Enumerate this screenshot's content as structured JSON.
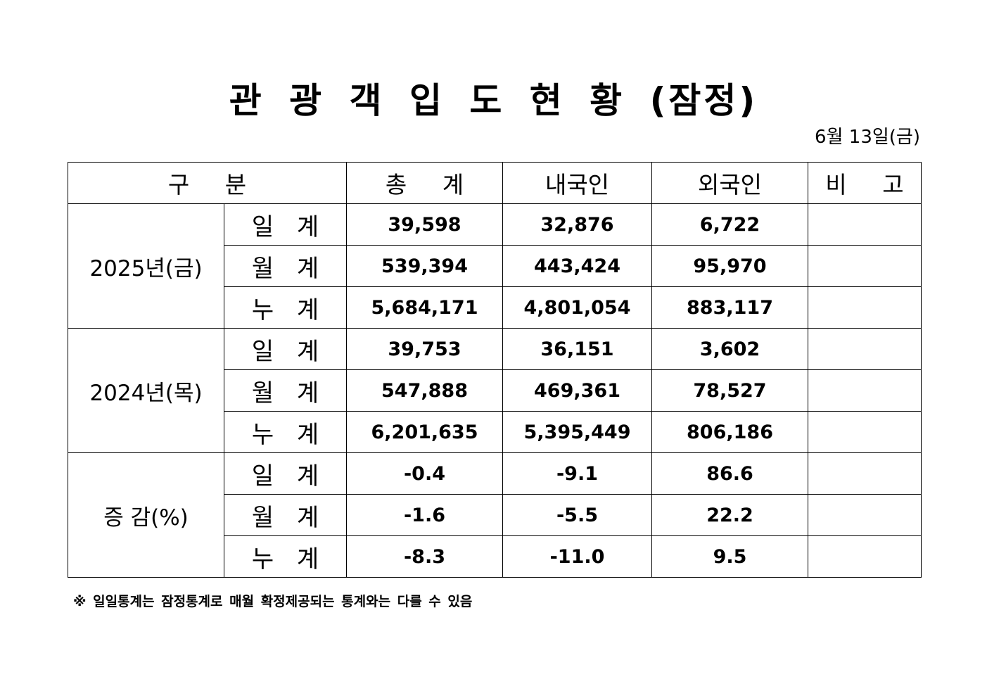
{
  "title": "관 광 객 입 도 현 황 (잠정)",
  "date": "6월  13일(금)",
  "headers": {
    "category": "구  분",
    "total": "총  계",
    "domestic": "내국인",
    "foreign": "외국인",
    "note": "비  고"
  },
  "groups": [
    {
      "label": "2025년(금)",
      "rows": [
        {
          "sub": "일 계",
          "total": "39,598",
          "domestic": "32,876",
          "foreign": "6,722",
          "note": ""
        },
        {
          "sub": "월 계",
          "total": "539,394",
          "domestic": "443,424",
          "foreign": "95,970",
          "note": ""
        },
        {
          "sub": "누 계",
          "total": "5,684,171",
          "domestic": "4,801,054",
          "foreign": "883,117",
          "note": ""
        }
      ]
    },
    {
      "label": "2024년(목)",
      "rows": [
        {
          "sub": "일 계",
          "total": "39,753",
          "domestic": "36,151",
          "foreign": "3,602",
          "note": ""
        },
        {
          "sub": "월 계",
          "total": "547,888",
          "domestic": "469,361",
          "foreign": "78,527",
          "note": ""
        },
        {
          "sub": "누 계",
          "total": "6,201,635",
          "domestic": "5,395,449",
          "foreign": "806,186",
          "note": ""
        }
      ]
    },
    {
      "label": "증 감(%)",
      "rows": [
        {
          "sub": "일 계",
          "total": "-0.4",
          "domestic": "-9.1",
          "foreign": "86.6",
          "note": ""
        },
        {
          "sub": "월 계",
          "total": "-1.6",
          "domestic": "-5.5",
          "foreign": "22.2",
          "note": ""
        },
        {
          "sub": "누 계",
          "total": "-8.3",
          "domestic": "-11.0",
          "foreign": "9.5",
          "note": ""
        }
      ]
    }
  ],
  "footnote": "※ 일일통계는 잠정통계로 매월 확정제공되는 통계와는 다를 수 있음"
}
